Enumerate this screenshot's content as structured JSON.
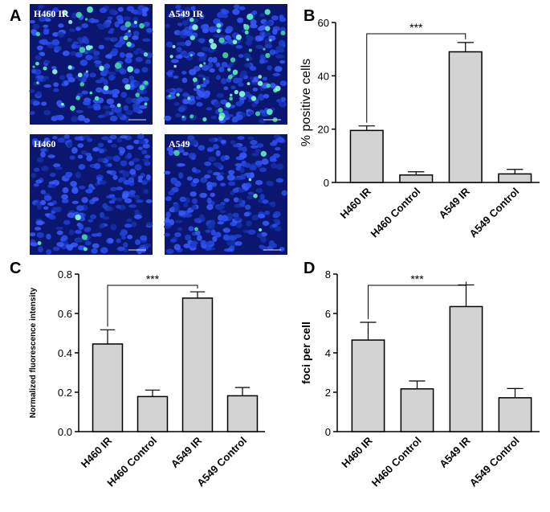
{
  "figure": {
    "panel_labels": [
      "A",
      "B",
      "C",
      "D"
    ],
    "image_labels": [
      "H460 IR",
      "A549 IR",
      "H460",
      "A549"
    ]
  },
  "chart_data": [
    {
      "type": "bar",
      "ylabel": "% positive cells",
      "annotation": "***",
      "categories": [
        "H460 IR",
        "H460 Control",
        "A549 IR",
        "A549 Control"
      ],
      "values": [
        19.5,
        2.8,
        49,
        3.2
      ],
      "errors": [
        1.7,
        1.2,
        3.5,
        1.7
      ],
      "color": "#d3d3d3",
      "ylim": [
        0,
        60
      ],
      "yticks": [
        0,
        20,
        40,
        60
      ]
    },
    {
      "type": "bar",
      "ylabel": "Normalized fluorescence intensity",
      "annotation": "***",
      "categories": [
        "H460 IR",
        "H460 Control",
        "A549 IR",
        "A549 Control"
      ],
      "values": [
        0.445,
        0.178,
        0.678,
        0.182
      ],
      "errors": [
        0.072,
        0.033,
        0.032,
        0.042
      ],
      "color": "#d3d3d3",
      "ylim": [
        0,
        0.8
      ],
      "yticks": [
        {
          "value": 0,
          "label": "0.0"
        },
        0.2,
        0.4,
        0.6,
        0.8
      ]
    },
    {
      "type": "bar",
      "ylabel": "foci per cell",
      "annotation": "***",
      "categories": [
        "H460 IR",
        "H460 Control",
        "A549 IR",
        "A549 Control"
      ],
      "values": [
        4.65,
        2.17,
        6.35,
        1.72
      ],
      "errors": [
        0.9,
        0.4,
        1.1,
        0.47
      ],
      "color": "#d3d3d3",
      "ylim": [
        0,
        8
      ],
      "yticks": [
        0,
        2,
        4,
        6,
        8
      ]
    }
  ]
}
